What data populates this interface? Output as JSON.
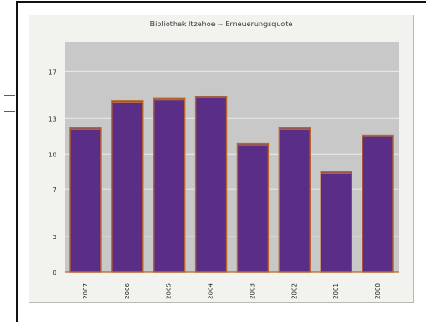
{
  "chart_data": {
    "type": "bar",
    "title": "Bibliothek Itzehoe -- Erneuerungsquote",
    "xlabel": "",
    "ylabel": "",
    "categories": [
      "2007",
      "2006",
      "2005",
      "2004",
      "2003",
      "2002",
      "2001",
      "2000"
    ],
    "values": [
      12.2,
      14.5,
      14.7,
      14.9,
      10.9,
      12.2,
      8.5,
      11.6
    ],
    "yticks": [
      0,
      3,
      7,
      10,
      13,
      17
    ],
    "ylim": [
      0,
      19.5
    ],
    "grid": true,
    "legend": "none",
    "colors": {
      "bar_fill": "#5a2e86",
      "bar_edge": "#b8642a",
      "plot_bg": "#c8c8c8",
      "grid": "#e6e6e6",
      "text": "#222222"
    }
  }
}
